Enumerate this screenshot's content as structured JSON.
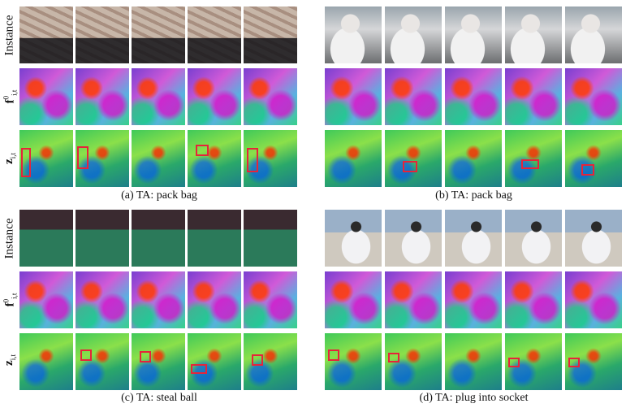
{
  "row_labels": {
    "instance": "Instance",
    "f_base": "f",
    "f_sup": "0",
    "f_sub": "i,t",
    "z_base": "z",
    "z_sub": "i,t"
  },
  "panels": [
    {
      "id": "a",
      "caption": "(a) TA: pack bag"
    },
    {
      "id": "b",
      "caption": "(b) TA: pack bag"
    },
    {
      "id": "c",
      "caption": "(c) TA: steal ball"
    },
    {
      "id": "d",
      "caption": "(d) TA: plug into socket"
    }
  ]
}
